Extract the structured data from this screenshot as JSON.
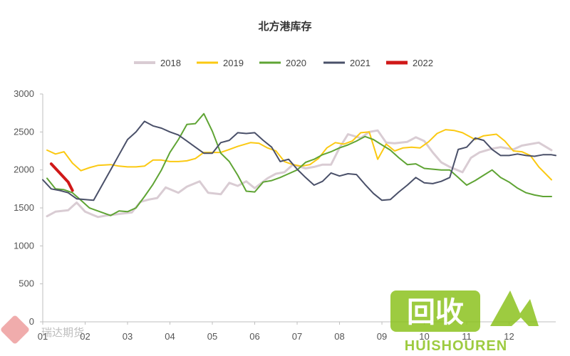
{
  "chart_data": {
    "type": "line",
    "title": "北方港库存",
    "xlabel": "",
    "ylabel": "",
    "ylim": [
      0,
      3000
    ],
    "yticks": [
      0,
      500,
      1000,
      1500,
      2000,
      2500,
      3000
    ],
    "xlim": [
      1,
      13.1
    ],
    "xticks": [
      1,
      2,
      3,
      4,
      5,
      6,
      7,
      8,
      9,
      10,
      11,
      12
    ],
    "xtick_labels": [
      "01",
      "02",
      "03",
      "04",
      "05",
      "06",
      "07",
      "08",
      "09",
      "10",
      "11",
      "12"
    ],
    "grid": false,
    "legend_position": "top",
    "series": [
      {
        "name": "2018",
        "color": "#d9ccd3",
        "x": [
          1.1,
          1.3,
          1.6,
          1.8,
          2.0,
          2.3,
          2.5,
          2.8,
          3.1,
          3.3,
          3.5,
          3.7,
          3.9,
          4.2,
          4.4,
          4.7,
          4.9,
          5.2,
          5.4,
          5.6,
          5.8,
          6.0,
          6.3,
          6.5,
          6.7,
          6.9,
          7.2,
          7.4,
          7.6,
          7.8,
          8.0,
          8.2,
          8.5,
          8.7,
          8.9,
          9.1,
          9.3,
          9.6,
          9.8,
          10.0,
          10.2,
          10.4,
          10.6,
          10.9,
          11.1,
          11.3,
          11.6,
          11.8,
          12.1,
          12.3,
          12.5,
          12.7,
          13.0
        ],
        "values": [
          1390,
          1450,
          1470,
          1570,
          1450,
          1380,
          1400,
          1420,
          1440,
          1580,
          1610,
          1630,
          1770,
          1700,
          1780,
          1850,
          1700,
          1680,
          1830,
          1790,
          1850,
          1760,
          1890,
          1950,
          1970,
          2070,
          2020,
          2040,
          2070,
          2070,
          2290,
          2470,
          2420,
          2500,
          2520,
          2360,
          2350,
          2370,
          2430,
          2380,
          2230,
          2100,
          2040,
          1970,
          2160,
          2230,
          2280,
          2300,
          2270,
          2320,
          2340,
          2360,
          2260
        ],
        "width": 3
      },
      {
        "name": "2019",
        "color": "#fbc912",
        "x": [
          1.1,
          1.3,
          1.5,
          1.7,
          1.9,
          2.1,
          2.3,
          2.6,
          2.8,
          3.0,
          3.2,
          3.4,
          3.6,
          3.8,
          4.0,
          4.2,
          4.4,
          4.6,
          4.8,
          5.0,
          5.2,
          5.4,
          5.6,
          5.9,
          6.1,
          6.3,
          6.5,
          6.7,
          6.9,
          7.1,
          7.3,
          7.5,
          7.7,
          7.9,
          8.1,
          8.3,
          8.5,
          8.7,
          8.9,
          9.1,
          9.3,
          9.5,
          9.7,
          9.9,
          10.1,
          10.3,
          10.5,
          10.7,
          10.9,
          11.2,
          11.4,
          11.7,
          11.9,
          12.1,
          12.3,
          12.5,
          12.7,
          13.0
        ],
        "values": [
          2260,
          2210,
          2240,
          2090,
          1990,
          2030,
          2060,
          2070,
          2050,
          2040,
          2040,
          2050,
          2130,
          2130,
          2110,
          2110,
          2120,
          2150,
          2230,
          2230,
          2230,
          2270,
          2310,
          2360,
          2350,
          2290,
          2250,
          2110,
          2070,
          2050,
          2070,
          2150,
          2290,
          2360,
          2340,
          2380,
          2490,
          2500,
          2140,
          2340,
          2250,
          2290,
          2300,
          2290,
          2370,
          2480,
          2530,
          2520,
          2490,
          2400,
          2450,
          2470,
          2380,
          2250,
          2240,
          2190,
          2040,
          1870
        ],
        "width": 2
      },
      {
        "name": "2020",
        "color": "#5fa434",
        "x": [
          1.1,
          1.3,
          1.5,
          1.7,
          1.9,
          2.1,
          2.3,
          2.6,
          2.8,
          3.0,
          3.2,
          3.4,
          3.6,
          3.8,
          4.0,
          4.2,
          4.4,
          4.6,
          4.8,
          5.0,
          5.2,
          5.4,
          5.6,
          5.8,
          6.0,
          6.2,
          6.4,
          6.6,
          6.8,
          7.0,
          7.2,
          7.4,
          7.6,
          7.8,
          8.0,
          8.2,
          8.4,
          8.6,
          8.8,
          9.0,
          9.2,
          9.4,
          9.6,
          9.8,
          10.0,
          10.2,
          10.4,
          10.6,
          10.8,
          11.0,
          11.2,
          11.4,
          11.6,
          11.8,
          12.0,
          12.2,
          12.4,
          12.6,
          12.8,
          13.0
        ],
        "values": [
          1890,
          1750,
          1740,
          1700,
          1600,
          1500,
          1460,
          1400,
          1460,
          1450,
          1500,
          1650,
          1810,
          2000,
          2230,
          2400,
          2600,
          2610,
          2740,
          2510,
          2220,
          2110,
          1930,
          1720,
          1710,
          1840,
          1860,
          1900,
          1950,
          2000,
          2100,
          2140,
          2200,
          2240,
          2290,
          2330,
          2380,
          2440,
          2400,
          2330,
          2260,
          2160,
          2070,
          2080,
          2020,
          2010,
          2000,
          2000,
          1900,
          1800,
          1860,
          1930,
          2000,
          1900,
          1840,
          1760,
          1700,
          1670,
          1650,
          1650
        ],
        "width": 2
      },
      {
        "name": "2021",
        "color": "#4a5069",
        "x": [
          1.0,
          1.2,
          1.4,
          1.6,
          1.8,
          2.0,
          2.2,
          2.4,
          2.6,
          2.8,
          3.0,
          3.2,
          3.4,
          3.6,
          3.8,
          4.0,
          4.2,
          4.4,
          4.6,
          4.8,
          5.0,
          5.2,
          5.4,
          5.6,
          5.8,
          6.0,
          6.2,
          6.4,
          6.6,
          6.8,
          7.0,
          7.2,
          7.4,
          7.6,
          7.8,
          8.0,
          8.2,
          8.4,
          8.6,
          8.8,
          9.0,
          9.2,
          9.4,
          9.6,
          9.8,
          10.0,
          10.2,
          10.4,
          10.6,
          10.8,
          11.0,
          11.2,
          11.4,
          11.6,
          11.8,
          12.0,
          12.2,
          12.4,
          12.6,
          12.8,
          13.0,
          13.1
        ],
        "values": [
          1870,
          1750,
          1730,
          1700,
          1620,
          1610,
          1600,
          1800,
          2000,
          2200,
          2400,
          2500,
          2640,
          2580,
          2550,
          2500,
          2460,
          2380,
          2300,
          2220,
          2220,
          2360,
          2390,
          2490,
          2480,
          2490,
          2390,
          2300,
          2110,
          2140,
          2010,
          1900,
          1800,
          1850,
          1960,
          1920,
          1950,
          1940,
          1810,
          1690,
          1600,
          1610,
          1710,
          1800,
          1900,
          1830,
          1820,
          1850,
          1900,
          2270,
          2300,
          2420,
          2390,
          2270,
          2190,
          2190,
          2210,
          2190,
          2180,
          2200,
          2200,
          2190
        ],
        "width": 2
      },
      {
        "name": "2022",
        "color": "#d01818",
        "x": [
          1.2,
          1.4,
          1.6,
          1.7
        ],
        "values": [
          2080,
          1960,
          1840,
          1730
        ],
        "width": 4
      }
    ]
  },
  "watermarks": {
    "left_logo_text": "瑞达期货",
    "right_logo_top": "回收",
    "right_logo_bottom": "HUISHOUREN"
  }
}
